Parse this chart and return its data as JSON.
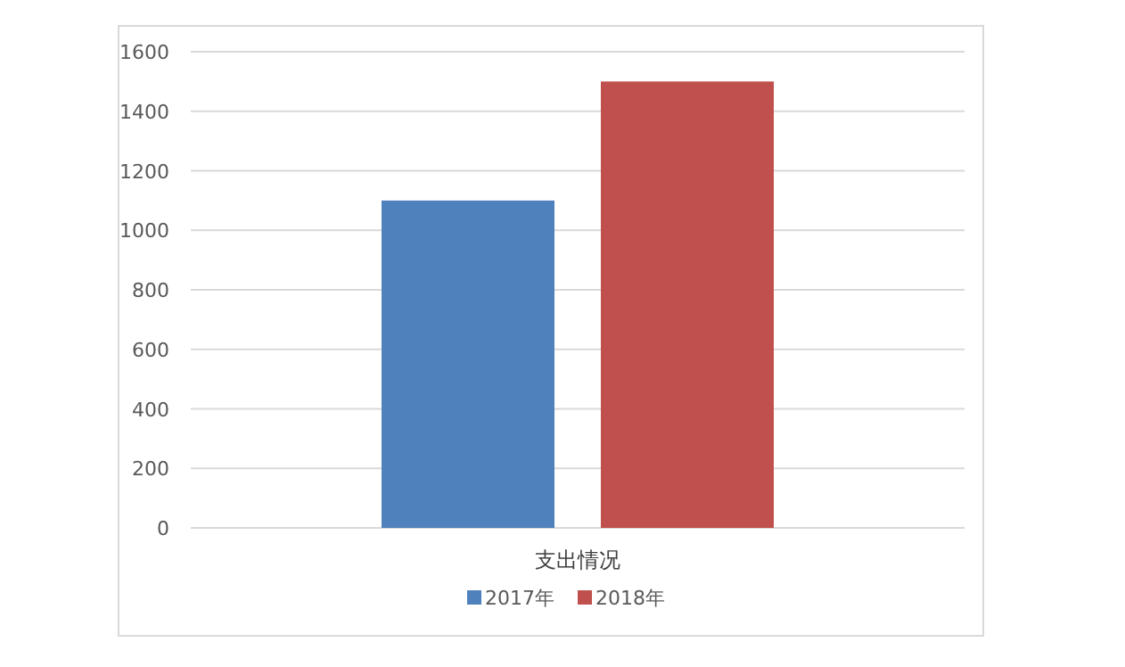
{
  "chart_data": {
    "type": "bar",
    "categories": [
      "支出情况"
    ],
    "series": [
      {
        "name": "2017年",
        "color": "#4f81bd",
        "values": [
          1100
        ]
      },
      {
        "name": "2018年",
        "color": "#c0504d",
        "values": [
          1500
        ]
      }
    ],
    "ylim": [
      0,
      1600
    ],
    "yticks": [
      0,
      200,
      400,
      600,
      800,
      1000,
      1200,
      1400,
      1600
    ],
    "grid": "y",
    "legend": "bottom"
  }
}
